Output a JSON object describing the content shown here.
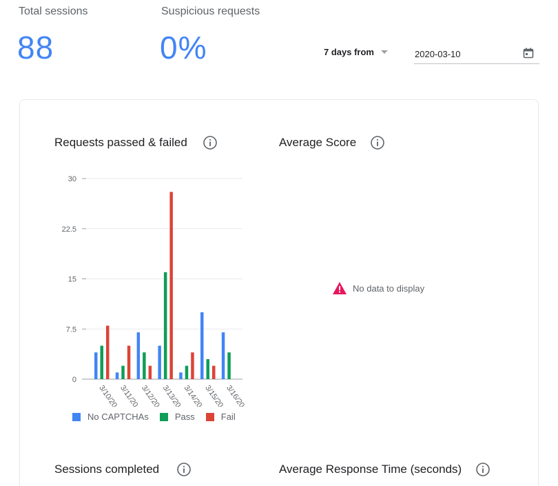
{
  "stats": {
    "total_sessions": {
      "label": "Total sessions",
      "value": "88"
    },
    "suspicious_requests": {
      "label": "Suspicious requests",
      "value": "0%"
    }
  },
  "controls": {
    "range_label": "7 days from",
    "date_value": "2020-03-10",
    "calendar_icon": "calendar-icon"
  },
  "panels": {
    "requests": {
      "title": "Requests passed & failed",
      "info_icon": "info-icon"
    },
    "average_score": {
      "title": "Average Score",
      "info_icon": "info-icon",
      "empty_text": "No data to display",
      "empty_icon": "warning-icon"
    },
    "sessions_completed": {
      "title": "Sessions completed",
      "info_icon": "info-icon"
    },
    "average_response": {
      "title": "Average Response Time (seconds)",
      "info_icon": "info-icon"
    }
  },
  "colors": {
    "accent": "#4285f4",
    "no_captcha": "#4285f4",
    "pass": "#0f9d58",
    "fail": "#db4437",
    "warning": "#e8175d"
  },
  "chart_data": {
    "type": "bar",
    "title": "Requests passed & failed",
    "categories": [
      "3/10/20",
      "3/11/20",
      "3/12/20",
      "3/13/20",
      "3/14/20",
      "3/15/20",
      "3/16/20"
    ],
    "series": [
      {
        "name": "No CAPTCHAs",
        "values": [
          4,
          1,
          7,
          5,
          1,
          10,
          7
        ]
      },
      {
        "name": "Pass",
        "values": [
          5,
          2,
          4,
          16,
          2,
          3,
          4
        ]
      },
      {
        "name": "Fail",
        "values": [
          8,
          5,
          2,
          28,
          4,
          2,
          0
        ]
      }
    ],
    "yticks": [
      "0",
      "7.5",
      "15",
      "22.5",
      "30"
    ],
    "ylim": [
      0,
      30
    ],
    "grid": true,
    "legend": "bottom"
  }
}
